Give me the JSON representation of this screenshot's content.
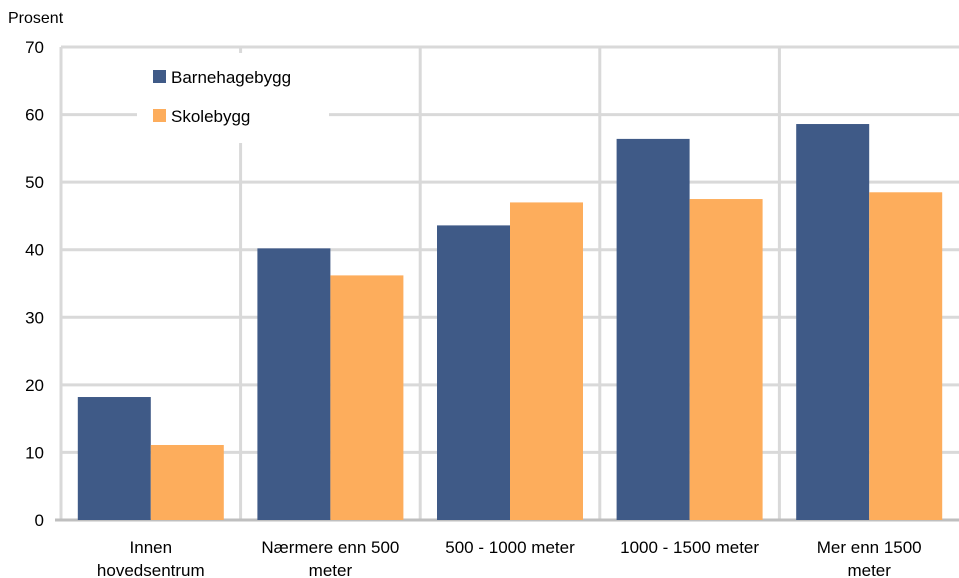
{
  "chart_data": {
    "type": "bar",
    "title": "",
    "xlabel": "",
    "ylabel": "Prosent",
    "ylim": [
      0,
      70
    ],
    "yticks": [
      0,
      10,
      20,
      30,
      40,
      50,
      60,
      70
    ],
    "grid": true,
    "legend_position": "top-left",
    "categories": [
      [
        "Innen",
        "hovedsentrum"
      ],
      [
        "Nærmere enn 500",
        "meter"
      ],
      [
        "500 - 1000 meter"
      ],
      [
        "1000 - 1500 meter"
      ],
      [
        "Mer enn 1500",
        "meter"
      ]
    ],
    "series": [
      {
        "name": "Barnehagebygg",
        "color": "#3f5a87",
        "values": [
          18.2,
          40.2,
          43.6,
          56.4,
          58.6
        ]
      },
      {
        "name": "Skolebygg",
        "color": "#fdad5c",
        "values": [
          11.1,
          36.2,
          47.0,
          47.5,
          48.5
        ]
      }
    ]
  }
}
